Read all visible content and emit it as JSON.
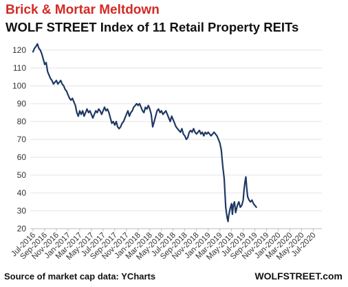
{
  "chart_data": {
    "type": "line",
    "title": "Brick & Mortar Meltdown",
    "subtitle": "WOLF STREET Index of 11 Retail Property REITs",
    "source": "Source of market cap data: YCharts",
    "brand": "WOLFSTREET.com",
    "xlabel": "",
    "ylabel": "",
    "ylim": [
      20,
      125
    ],
    "yticks": [
      20,
      30,
      40,
      50,
      60,
      70,
      80,
      90,
      100,
      110,
      120
    ],
    "xticks": [
      "Jul-2016",
      "Sep-2016",
      "Nov-2016",
      "Jan-2017",
      "Mar-2017",
      "May-2017",
      "Jul-2017",
      "Sep-2017",
      "Nov-2017",
      "Jan-2018",
      "Mar-2018",
      "May-2018",
      "Jul-2018",
      "Sep-2018",
      "Nov-2018",
      "Jan-2019",
      "Mar-2019",
      "May-2019",
      "Jul-2019",
      "Sep-2019",
      "Nov-2019",
      "Jan-2020",
      "Mar-2020",
      "May-2020",
      "Jul-2020"
    ],
    "grid": true,
    "legend": "none",
    "line_color": "#1f3864",
    "series": [
      {
        "values": [
          [
            0,
            119
          ],
          [
            0.25,
            121
          ],
          [
            0.5,
            122
          ],
          [
            0.75,
            123.5
          ],
          [
            1,
            121
          ],
          [
            1.25,
            120
          ],
          [
            1.5,
            118
          ],
          [
            1.75,
            115
          ],
          [
            2,
            112
          ],
          [
            2.25,
            113
          ],
          [
            2.5,
            108
          ],
          [
            2.75,
            106
          ],
          [
            3,
            104
          ],
          [
            3.25,
            103
          ],
          [
            3.5,
            101
          ],
          [
            3.75,
            102
          ],
          [
            4,
            103
          ],
          [
            4.25,
            101
          ],
          [
            4.5,
            102
          ],
          [
            4.75,
            103
          ],
          [
            5,
            101
          ],
          [
            5.25,
            100
          ],
          [
            5.5,
            98
          ],
          [
            5.75,
            97
          ],
          [
            6,
            95
          ],
          [
            6.25,
            93
          ],
          [
            6.5,
            92
          ],
          [
            6.75,
            93
          ],
          [
            7,
            91
          ],
          [
            7.25,
            89
          ],
          [
            7.5,
            85
          ],
          [
            7.75,
            83
          ],
          [
            8,
            86
          ],
          [
            8.25,
            84
          ],
          [
            8.5,
            86
          ],
          [
            8.75,
            83
          ],
          [
            9,
            85
          ],
          [
            9.25,
            87
          ],
          [
            9.5,
            85
          ],
          [
            9.75,
            86
          ],
          [
            10,
            84
          ],
          [
            10.25,
            82
          ],
          [
            10.5,
            84
          ],
          [
            10.75,
            86
          ],
          [
            11,
            85
          ],
          [
            11.25,
            87
          ],
          [
            11.5,
            86
          ],
          [
            11.75,
            84
          ],
          [
            12,
            86
          ],
          [
            12.25,
            88
          ],
          [
            12.5,
            86
          ],
          [
            12.75,
            87
          ],
          [
            13,
            85
          ],
          [
            13.25,
            82
          ],
          [
            13.5,
            79
          ],
          [
            13.75,
            80
          ],
          [
            14,
            78
          ],
          [
            14.25,
            80
          ],
          [
            14.5,
            77
          ],
          [
            14.75,
            76
          ],
          [
            15,
            77
          ],
          [
            15.25,
            79
          ],
          [
            15.5,
            80
          ],
          [
            15.75,
            82
          ],
          [
            16,
            84
          ],
          [
            16.25,
            86
          ],
          [
            16.5,
            83
          ],
          [
            16.75,
            85
          ],
          [
            17,
            86
          ],
          [
            17.25,
            88
          ],
          [
            17.5,
            89
          ],
          [
            17.75,
            90
          ],
          [
            18,
            89
          ],
          [
            18.25,
            90
          ],
          [
            18.5,
            88
          ],
          [
            18.75,
            86
          ],
          [
            19,
            85
          ],
          [
            19.25,
            88
          ],
          [
            19.5,
            87
          ],
          [
            19.75,
            89
          ],
          [
            20,
            87
          ],
          [
            20.25,
            84
          ],
          [
            20.5,
            77
          ],
          [
            20.75,
            80
          ],
          [
            21,
            83
          ],
          [
            21.25,
            86
          ],
          [
            21.5,
            87
          ],
          [
            21.75,
            85
          ],
          [
            22,
            86
          ],
          [
            22.25,
            84
          ],
          [
            22.5,
            85
          ],
          [
            22.75,
            86
          ],
          [
            23,
            84
          ],
          [
            23.25,
            82
          ],
          [
            23.5,
            80
          ],
          [
            23.75,
            83
          ],
          [
            24,
            81
          ],
          [
            24.25,
            79
          ],
          [
            24.5,
            77
          ],
          [
            24.75,
            76
          ],
          [
            25,
            75
          ],
          [
            25.25,
            74
          ],
          [
            25.5,
            76
          ],
          [
            25.75,
            73
          ],
          [
            26,
            72
          ],
          [
            26.25,
            70
          ],
          [
            26.5,
            71
          ],
          [
            26.75,
            74
          ],
          [
            27,
            75
          ],
          [
            27.25,
            74
          ],
          [
            27.5,
            76
          ],
          [
            27.75,
            74
          ],
          [
            28,
            73
          ],
          [
            28.25,
            74
          ],
          [
            28.5,
            75
          ],
          [
            28.75,
            73
          ],
          [
            29,
            74
          ],
          [
            29.25,
            72
          ],
          [
            29.5,
            74
          ],
          [
            29.75,
            73
          ],
          [
            30,
            74
          ],
          [
            30.25,
            73
          ],
          [
            30.5,
            72
          ],
          [
            30.75,
            73
          ],
          [
            31,
            74
          ],
          [
            31.25,
            73
          ],
          [
            31.5,
            72
          ],
          [
            31.75,
            70
          ],
          [
            32,
            68
          ],
          [
            32.25,
            64
          ],
          [
            32.5,
            55
          ],
          [
            32.75,
            48
          ],
          [
            33,
            32
          ],
          [
            33.25,
            26
          ],
          [
            33.4,
            24
          ],
          [
            33.5,
            27
          ],
          [
            33.75,
            31
          ],
          [
            34,
            34
          ],
          [
            34.15,
            28
          ],
          [
            34.3,
            33
          ],
          [
            34.5,
            35
          ],
          [
            34.7,
            29
          ],
          [
            35,
            33
          ],
          [
            35.25,
            35
          ],
          [
            35.5,
            32
          ],
          [
            35.75,
            33
          ],
          [
            36,
            36
          ],
          [
            36.15,
            42
          ],
          [
            36.3,
            46
          ],
          [
            36.45,
            49
          ],
          [
            36.6,
            43
          ],
          [
            36.75,
            38
          ],
          [
            37,
            36
          ],
          [
            37.25,
            35
          ],
          [
            37.5,
            36
          ],
          [
            37.75,
            34
          ],
          [
            38,
            33
          ],
          [
            38.25,
            32
          ]
        ]
      }
    ]
  }
}
